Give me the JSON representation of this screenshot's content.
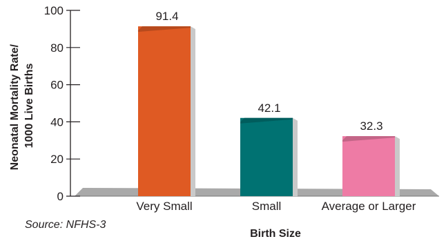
{
  "chart_data": {
    "type": "bar",
    "categories": [
      "Very Small",
      "Small",
      "Average or Larger"
    ],
    "values": [
      91.4,
      42.1,
      32.3
    ],
    "value_labels": [
      "91.4",
      "42.1",
      "32.3"
    ],
    "colors": [
      "#df5a23",
      "#007272",
      "#ee7ba5"
    ],
    "title": "",
    "xlabel": "Birth Size",
    "ylabel_line1": "Neonatal Mortality Rate/",
    "ylabel_line2": "1000 Live Births",
    "ylim": [
      0,
      100
    ],
    "yticks": [
      "0",
      "20",
      "40",
      "60",
      "80",
      "100"
    ],
    "floor_color": "#a9a9a9",
    "grid": false,
    "legend": "none"
  },
  "source": "Source: NFHS-3"
}
